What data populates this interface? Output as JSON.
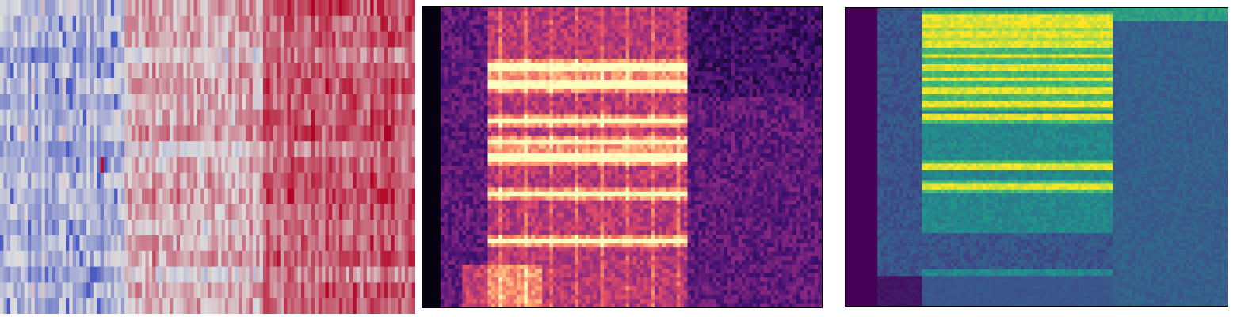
{
  "chart_data": [
    {
      "type": "heatmap",
      "colormap": "coolwarm",
      "colors": {
        "low": "#3b4cc0",
        "mid": "#dddddd",
        "high": "#b40426"
      },
      "rows": 20,
      "cols": 120,
      "regions": [
        {
          "col_start": 0,
          "col_end": 0.3,
          "mean": -0.35
        },
        {
          "col_start": 0.3,
          "col_end": 0.63,
          "mean": 0.2
        },
        {
          "col_start": 0.63,
          "col_end": 1.0,
          "mean": 0.55
        }
      ],
      "axes_visible": false
    },
    {
      "type": "heatmap",
      "colormap": "magma",
      "colors": [
        "#000004",
        "#3b0f70",
        "#8c2981",
        "#de4968",
        "#fe9f6d",
        "#fcfdbf"
      ],
      "rows": 70,
      "cols": 110,
      "harmonic_bands_from_bottom": [
        0.22,
        0.38,
        0.5,
        0.55,
        0.62,
        0.74,
        0.8
      ],
      "active_cols": [
        0.16,
        0.66
      ],
      "axes_visible": false
    },
    {
      "type": "heatmap",
      "colormap": "viridis",
      "colors": [
        "#440154",
        "#3b528b",
        "#21918c",
        "#5ec962",
        "#fde725"
      ],
      "rows": 90,
      "cols": 120,
      "harmonic_bands_from_top": [
        0.03,
        0.06,
        0.09,
        0.12,
        0.16,
        0.2,
        0.24,
        0.28,
        0.32,
        0.37,
        0.53,
        0.6
      ],
      "active_cols": [
        0.2,
        0.7
      ],
      "axes_visible": false
    }
  ]
}
